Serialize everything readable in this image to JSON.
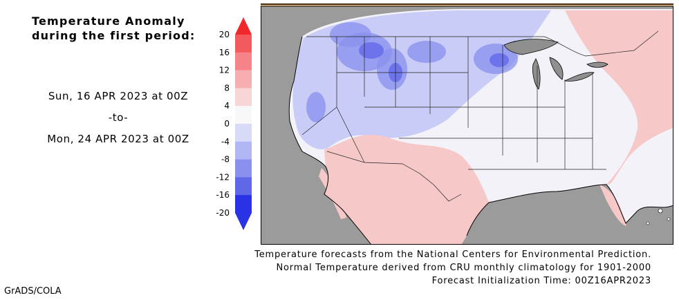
{
  "header": {
    "title_line1": "Temperature Anomaly",
    "title_line2": "during the first period:"
  },
  "period": {
    "start": "Sun, 16 APR 2023 at 00Z",
    "separator": "-to-",
    "end": "Mon, 24 APR 2023 at 00Z"
  },
  "colorbar": {
    "levels": [
      "20",
      "16",
      "12",
      "8",
      "4",
      "0",
      "-4",
      "-8",
      "-12",
      "-16",
      "-20"
    ],
    "colors": [
      "#f0282c",
      "#f25a5e",
      "#f48488",
      "#f7aeb0",
      "#f9d6d6",
      "#f8f8f8",
      "#d8daf8",
      "#b2b6f4",
      "#8a90ee",
      "#6168e8",
      "#2a32e6",
      "#2a32e6"
    ]
  },
  "map": {
    "ocean_color": "#9b9b9b",
    "lake_color": "#8f8f8f",
    "warm_color": "#f7c8c8",
    "cool_color": "#c8ccf6",
    "neutral_color": "#f2f2f8"
  },
  "credits": {
    "line1": "Temperature forecasts from the National Centers for Environmental Prediction.",
    "line2": "Normal Temperature derived from CRU monthly climatology for 1901-2000",
    "line3": "Forecast Initialization Time: 00Z16APR2023"
  },
  "footer": {
    "label": "GrADS/COLA"
  }
}
